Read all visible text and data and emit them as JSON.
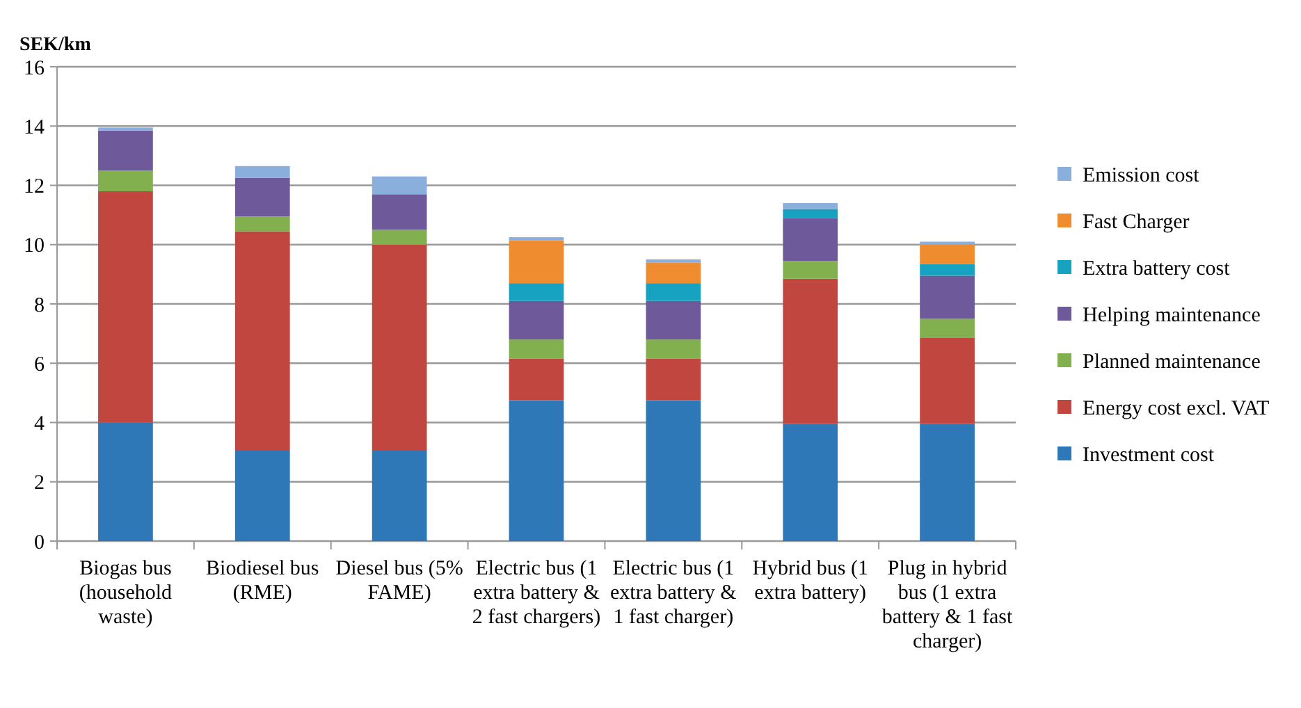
{
  "chart_data": {
    "type": "bar",
    "stacked": true,
    "ylabel": "SEK/km",
    "categories": [
      "Biogas bus (household waste)",
      "Biodiesel bus (RME)",
      "Diesel bus (5% FAME)",
      "Electric bus (1 extra battery & 2 fast chargers)",
      "Electric bus (1 extra battery & 1 fast charger)",
      "Hybrid bus (1 extra battery)",
      "Plug in hybrid bus (1 extra battery & 1 fast charger)"
    ],
    "series": [
      {
        "name": "Investment cost",
        "color": "#2e78b8",
        "values": [
          4.0,
          3.05,
          3.05,
          4.75,
          4.75,
          3.95,
          3.95
        ]
      },
      {
        "name": "Energy cost  excl. VAT",
        "color": "#c0463f",
        "values": [
          7.8,
          7.4,
          6.95,
          1.4,
          1.4,
          4.9,
          2.9
        ]
      },
      {
        "name": "Planned maintenance",
        "color": "#82b04f",
        "values": [
          0.7,
          0.5,
          0.5,
          0.65,
          0.65,
          0.6,
          0.65
        ]
      },
      {
        "name": "Helping maintenance",
        "color": "#6e5a9a",
        "values": [
          1.35,
          1.3,
          1.2,
          1.3,
          1.3,
          1.45,
          1.45
        ]
      },
      {
        "name": "Extra battery cost",
        "color": "#17a2c2",
        "values": [
          0,
          0,
          0,
          0.6,
          0.6,
          0.3,
          0.4
        ]
      },
      {
        "name": "Fast Charger",
        "color": "#f08c30",
        "values": [
          0,
          0,
          0,
          1.45,
          0.7,
          0,
          0.65
        ]
      },
      {
        "name": "Emission cost",
        "color": "#8aafdc",
        "values": [
          0.1,
          0.4,
          0.6,
          0.1,
          0.1,
          0.2,
          0.1
        ]
      }
    ],
    "ylim": [
      0,
      16
    ],
    "yticks": [
      0,
      2,
      4,
      6,
      8,
      10,
      12,
      14,
      16
    ],
    "grid": "y",
    "legend": "right"
  }
}
